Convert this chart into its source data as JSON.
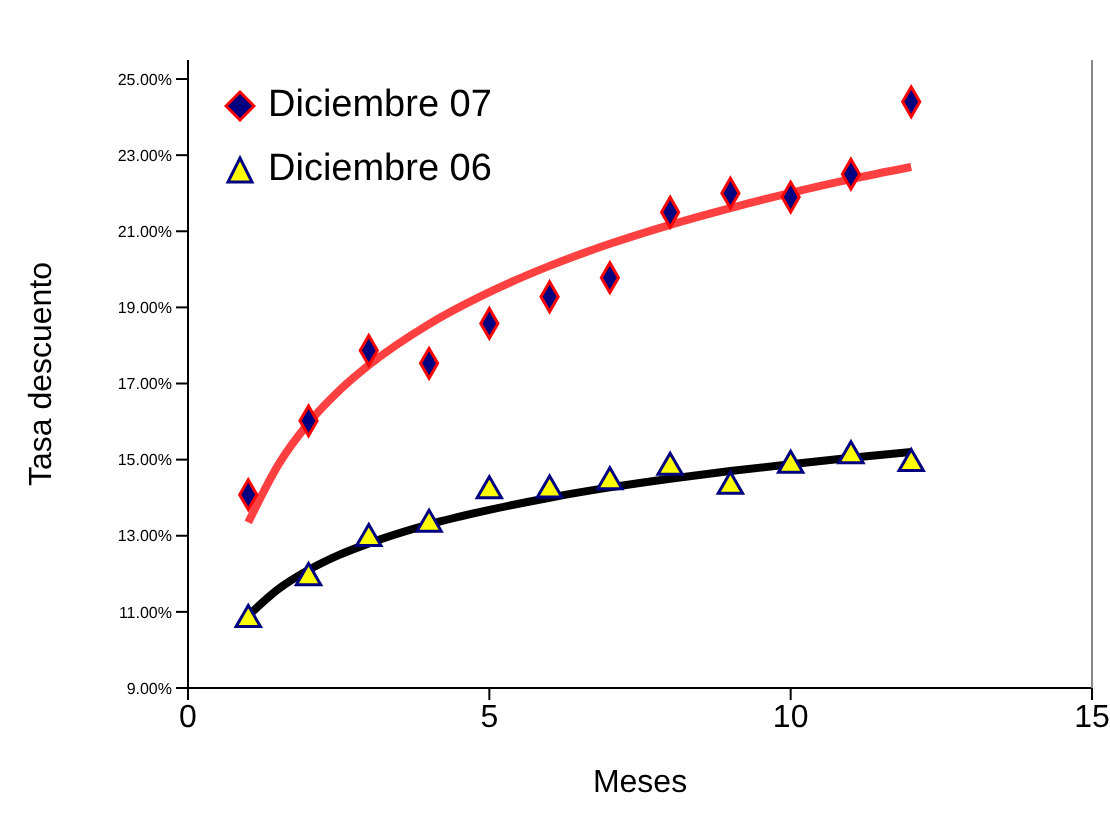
{
  "chart_data": {
    "type": "scatter",
    "xlabel": "Meses",
    "ylabel": "Tasa descuento",
    "xlim": [
      0,
      15
    ],
    "xticks": [
      0,
      5,
      10,
      15
    ],
    "ylim": [
      9,
      25.5
    ],
    "yticks": [
      {
        "value": 9,
        "label": "9.00%"
      },
      {
        "value": 11,
        "label": "11.00%"
      },
      {
        "value": 13,
        "label": "13.00%"
      },
      {
        "value": 15,
        "label": "15.00%"
      },
      {
        "value": 17,
        "label": "17.00%"
      },
      {
        "value": 19,
        "label": "19.00%"
      },
      {
        "value": 21,
        "label": "21.00%"
      },
      {
        "value": 23,
        "label": "23.00%"
      },
      {
        "value": 25,
        "label": "25.00%"
      }
    ],
    "grid": false,
    "legend": "top left",
    "series": [
      {
        "type": "scatter",
        "name": "Diciembre 07",
        "marker": "diamond",
        "color": "#000080",
        "x": [
          1,
          2,
          3,
          4,
          5,
          6,
          7,
          8,
          9,
          10,
          11,
          12
        ],
        "values": [
          14.08,
          16.02,
          17.87,
          17.53,
          18.58,
          19.28,
          19.78,
          21.5,
          22.0,
          21.9,
          22.5,
          24.4
        ]
      },
      {
        "type": "scatter",
        "name": "Diciembre 06",
        "marker": "triangle",
        "color": "#ffff00",
        "x": [
          1,
          2,
          3,
          4,
          5,
          6,
          7,
          8,
          9,
          10,
          11,
          12
        ],
        "values": [
          10.8,
          11.9,
          12.93,
          13.3,
          14.18,
          14.2,
          14.42,
          14.8,
          14.3,
          14.85,
          15.1,
          14.9
        ]
      },
      {
        "type": "line",
        "color": "#ff4040",
        "x": [
          1,
          1.5,
          2,
          2.5,
          3,
          4,
          5,
          6,
          7,
          8,
          9,
          10,
          11,
          12
        ],
        "values": [
          13.35,
          14.87,
          15.96,
          16.8,
          17.48,
          18.56,
          19.4,
          20.09,
          20.67,
          21.17,
          21.61,
          22.01,
          22.37,
          22.69
        ]
      },
      {
        "type": "line",
        "color": "#000000",
        "x": [
          1,
          1.5,
          2,
          2.5,
          3,
          4,
          5,
          6,
          7,
          8,
          9,
          10,
          11,
          12
        ],
        "values": [
          10.9,
          11.6,
          12.1,
          12.49,
          12.8,
          13.3,
          13.68,
          14.0,
          14.27,
          14.5,
          14.7,
          14.88,
          15.05,
          15.2
        ]
      }
    ]
  }
}
